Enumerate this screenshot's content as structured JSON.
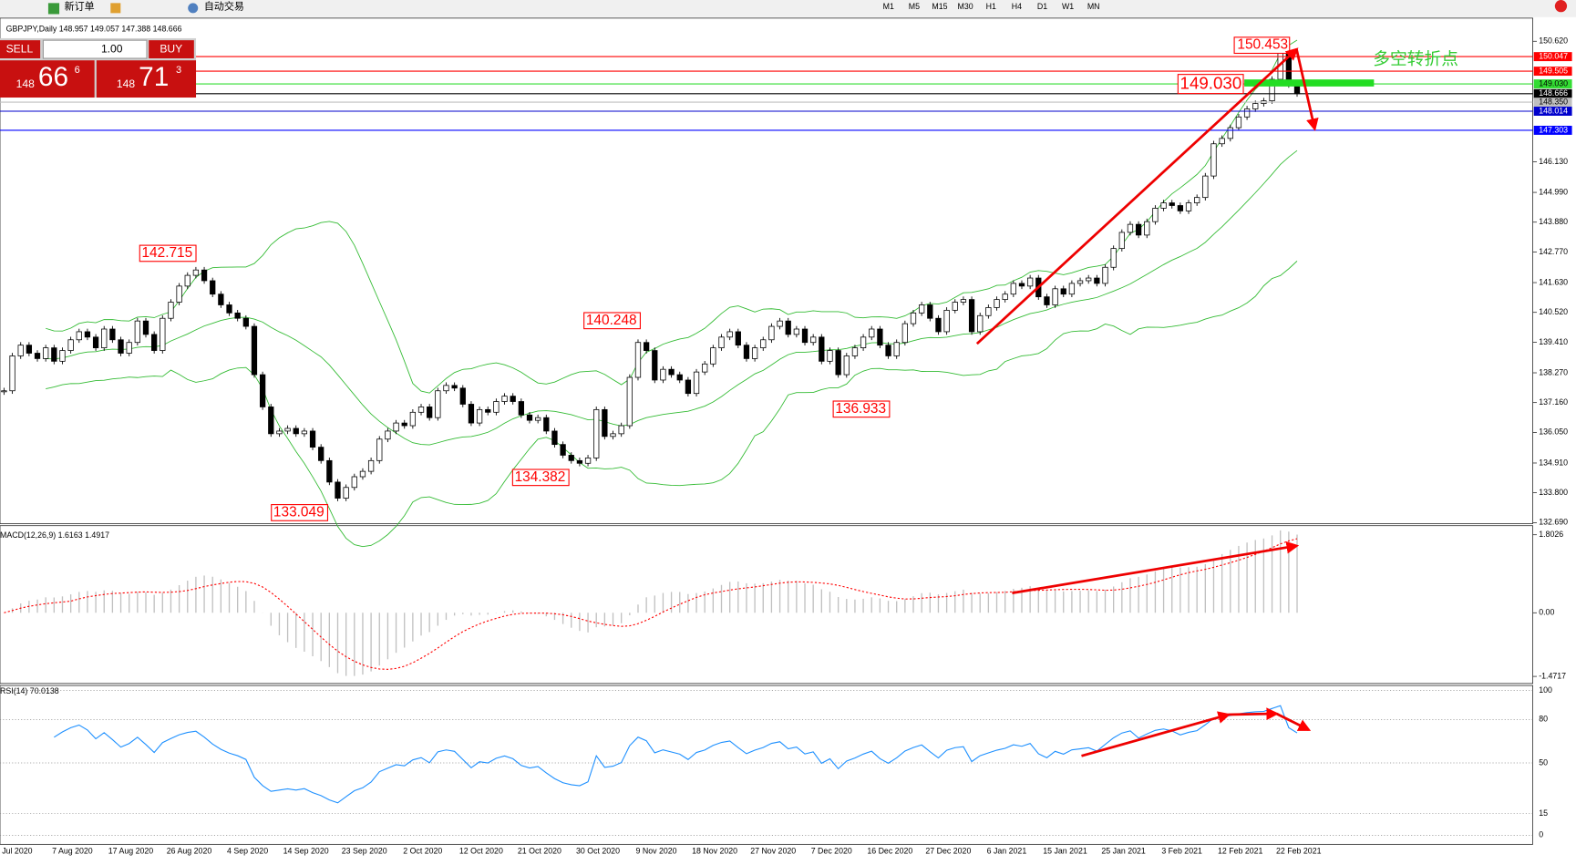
{
  "toolbar": {
    "new_order": "新订单",
    "auto_trade": "自动交易",
    "timeframes": [
      "M1",
      "M5",
      "M15",
      "M30",
      "H1",
      "H4",
      "D1",
      "W1",
      "MN"
    ]
  },
  "trade_panel": {
    "sell": "SELL",
    "buy": "BUY",
    "lots": "1.00",
    "bid_big": "148",
    "bid_pips": "66",
    "bid_frac": "6",
    "ask_big": "148",
    "ask_pips": "71",
    "ask_frac": "3"
  },
  "date_axis": [
    "Jul 2020",
    "7 Aug 2020",
    "17 Aug 2020",
    "26 Aug 2020",
    "4 Sep 2020",
    "14 Sep 2020",
    "23 Sep 2020",
    "2 Oct 2020",
    "12 Oct 2020",
    "21 Oct 2020",
    "30 Oct 2020",
    "9 Nov 2020",
    "18 Nov 2020",
    "27 Nov 2020",
    "7 Dec 2020",
    "16 Dec 2020",
    "27 Dec 2020",
    "6 Jan 2021",
    "15 Jan 2021",
    "25 Jan 2021",
    "3 Feb 2021",
    "12 Feb 2021",
    "22 Feb 2021"
  ],
  "chart_data": [
    {
      "type": "candlestick",
      "title": "GBPJPY,Daily  148.957 149.057 147.388 148.666",
      "up_color": "#ffffff",
      "down_color": "#000000",
      "band_color": "#33bb33",
      "values": [
        137.6,
        138.9,
        139.3,
        139.0,
        138.8,
        139.2,
        138.7,
        139.1,
        139.5,
        139.8,
        139.6,
        139.2,
        139.9,
        139.5,
        139.0,
        139.4,
        140.2,
        139.7,
        139.1,
        140.3,
        140.9,
        141.5,
        141.9,
        142.1,
        141.7,
        141.2,
        140.8,
        140.5,
        140.3,
        140.0,
        138.2,
        137.0,
        136.0,
        136.1,
        136.2,
        136.0,
        136.1,
        135.5,
        135.0,
        134.2,
        133.6,
        134.0,
        134.4,
        134.6,
        135.0,
        135.8,
        136.1,
        136.4,
        136.3,
        136.8,
        137.0,
        136.6,
        137.6,
        137.8,
        137.7,
        137.1,
        136.4,
        136.9,
        136.8,
        137.2,
        137.4,
        137.2,
        136.7,
        136.5,
        136.6,
        136.1,
        135.6,
        135.2,
        135.0,
        134.9,
        135.1,
        136.9,
        135.9,
        136.0,
        136.3,
        138.1,
        139.4,
        139.1,
        138.0,
        138.4,
        138.2,
        138.0,
        137.5,
        138.3,
        138.6,
        139.2,
        139.6,
        139.8,
        139.3,
        138.8,
        139.2,
        139.5,
        140.0,
        140.2,
        139.7,
        139.9,
        139.4,
        139.6,
        138.7,
        139.1,
        138.2,
        138.9,
        139.2,
        139.6,
        139.9,
        139.3,
        138.9,
        139.4,
        140.1,
        140.5,
        140.8,
        140.3,
        139.8,
        140.6,
        140.9,
        141.0,
        139.8,
        140.4,
        140.7,
        141.0,
        141.2,
        141.6,
        141.5,
        141.8,
        141.1,
        140.8,
        141.4,
        141.2,
        141.6,
        141.7,
        141.8,
        141.6,
        142.2,
        142.9,
        143.5,
        143.8,
        143.4,
        143.9,
        144.4,
        144.6,
        144.5,
        144.3,
        144.6,
        144.8,
        145.6,
        146.8,
        147.0,
        147.4,
        147.8,
        148.1,
        148.3,
        148.4,
        149.2,
        150.2,
        149.0,
        148.666
      ],
      "ylim": [
        132.65,
        151.48
      ],
      "yticks": [
        {
          "value": 150.62,
          "label": "150.620"
        },
        {
          "value": 146.13,
          "label": "146.130"
        },
        {
          "value": 144.99,
          "label": "144.990"
        },
        {
          "value": 143.88,
          "label": "143.880"
        },
        {
          "value": 142.77,
          "label": "142.770"
        },
        {
          "value": 141.63,
          "label": "141.630"
        },
        {
          "value": 140.52,
          "label": "140.520"
        },
        {
          "value": 139.41,
          "label": "139.410"
        },
        {
          "value": 138.27,
          "label": "138.270"
        },
        {
          "value": 137.16,
          "label": "137.160"
        },
        {
          "value": 136.05,
          "label": "136.050"
        },
        {
          "value": 134.91,
          "label": "134.910"
        },
        {
          "value": 133.8,
          "label": "133.800"
        },
        {
          "value": 132.69,
          "label": "132.690"
        }
      ],
      "levels": [
        {
          "value": 150.047,
          "label": "150.047",
          "color": "#ff0000"
        },
        {
          "value": 149.505,
          "label": "149.505",
          "color": "#ff0000"
        },
        {
          "value": 149.03,
          "label": "149.030",
          "color": "#33dd33"
        },
        {
          "value": 148.666,
          "label": "148.666",
          "color": "#000000"
        },
        {
          "value": 148.35,
          "label": "148.350",
          "color": "#c0c0c0"
        },
        {
          "value": 148.014,
          "label": "148.014",
          "color": "#0000cc"
        },
        {
          "value": 147.303,
          "label": "147.303",
          "color": "#0000ff"
        }
      ],
      "annotations": [
        "150.453",
        "149.030",
        "142.715",
        "140.248",
        "136.933",
        "134.382",
        "133.049",
        "多空转折点"
      ]
    },
    {
      "type": "macd",
      "title": "MACD(12,26,9) 1.6163 1.4917",
      "hist_color": "#c0c0c0",
      "signal_color": "#ff0000",
      "ylim": [
        -1.636,
        2.013
      ],
      "yticks": [
        1.8026,
        {
          "value": 0,
          "label": "0.00"
        },
        -1.4717
      ]
    },
    {
      "type": "rsi",
      "title": "RSI(14) 70.0138",
      "color": "#1e90ff",
      "ylim": [
        -6.25,
        103.5
      ],
      "yticks": [
        100,
        80,
        50,
        15,
        0
      ],
      "grid": true
    }
  ]
}
